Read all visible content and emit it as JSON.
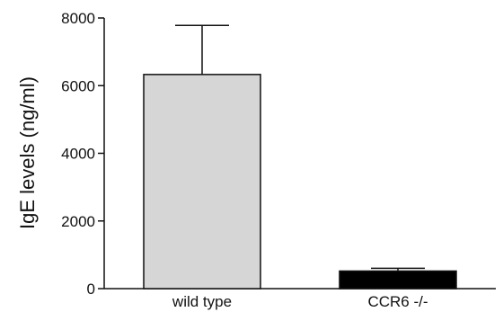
{
  "chart_data": {
    "type": "bar",
    "title": "",
    "xlabel": "",
    "ylabel": "IgE levels (ng/ml)",
    "categories": [
      "wild type",
      "CCR6 -/-"
    ],
    "values": [
      6330,
      520
    ],
    "error_upper": [
      7780,
      600
    ],
    "ylim": [
      0,
      8000
    ],
    "yticks": [
      0,
      2000,
      4000,
      6000,
      8000
    ],
    "ytick_labels": [
      "0",
      "2000",
      "4000",
      "6000",
      "8000"
    ],
    "bar_colors": [
      "#d6d6d6",
      "#000000"
    ],
    "grid": false,
    "legend": "none"
  }
}
